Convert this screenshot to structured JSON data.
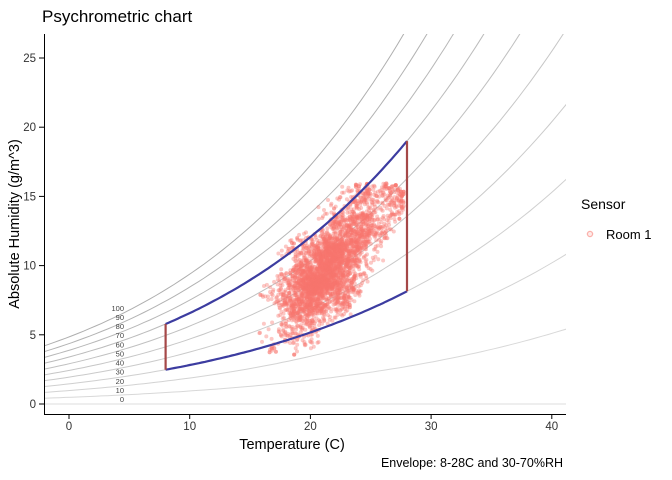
{
  "title": "Psychrometric chart",
  "caption": "Envelope: 8-28C and 30-70%RH",
  "legend": {
    "title": "Sensor",
    "items": [
      {
        "label": "Room 1",
        "color": "#F8766D"
      }
    ]
  },
  "chart_data": {
    "type": "scatter",
    "title": "Psychrometric chart",
    "xlabel": "Temperature (C)",
    "ylabel": "Absolute Humidity (g/m^3)",
    "x_ticks": [
      0,
      10,
      20,
      30,
      40
    ],
    "y_ticks": [
      0,
      5,
      10,
      15,
      20,
      25
    ],
    "xlim": [
      -2.1,
      41.2
    ],
    "ylim": [
      -0.75,
      26.75
    ],
    "grid": false,
    "legend_position": "right",
    "rh_curves_percent": [
      0,
      10,
      20,
      30,
      40,
      50,
      60,
      70,
      80,
      90,
      100
    ],
    "rh_label_temperature": 4.55,
    "envelope": {
      "temp_min": 8,
      "temp_max": 28,
      "rh_min": 30,
      "rh_max": 70,
      "temp_line_color": "#A54848",
      "rh_line_color": "#3C3CA0",
      "caption": "Envelope: 8-28C and 30-70%RH"
    },
    "series": [
      {
        "name": "Room 1",
        "color": "#F8766D",
        "point_opacity": 0.4,
        "cloud": {
          "seed": 77,
          "n": 3600,
          "start_t": 21.5,
          "start_ah": 10,
          "t_center": 21.6,
          "ah_center": 9.8,
          "t_min": 15.7,
          "t_max": 27.8,
          "ah_min": 3.5,
          "ah_max": 15.95,
          "diag_slope": 1.12
        }
      }
    ],
    "style": {
      "curve_color": "#9a9a9a",
      "curve_label_color": "#444444",
      "axis_color": "#000000",
      "tick_label_color": "#333333",
      "background": "#ffffff"
    }
  }
}
